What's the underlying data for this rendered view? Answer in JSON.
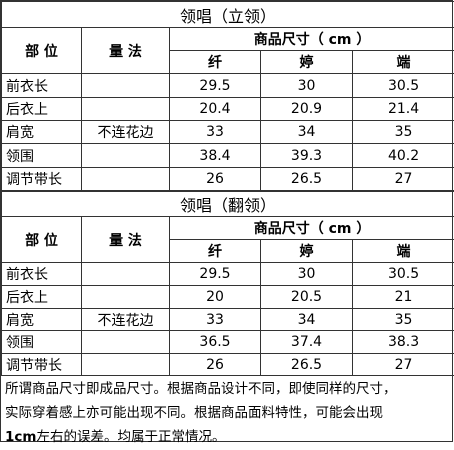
{
  "sections": [
    {
      "title": "领唱（立领）",
      "header": {
        "part": "部 位",
        "method": "量 法",
        "size": "商品尺寸（ cm ）",
        "sizes": [
          "纤",
          "婷",
          "端"
        ]
      },
      "rows": [
        {
          "part": "前衣长",
          "values": [
            29.5,
            30,
            30.5
          ]
        },
        {
          "part": "后衣上",
          "values": [
            20.4,
            20.9,
            21.4
          ]
        },
        {
          "part": "肩宽",
          "method": "不连花边",
          "values": [
            33,
            34,
            35
          ]
        },
        {
          "part": "领围",
          "values": [
            38.4,
            39.3,
            40.2
          ]
        },
        {
          "part": "调节带长",
          "values": [
            26,
            26.5,
            27
          ]
        }
      ]
    },
    {
      "title": "领唱（翻领）",
      "header": {
        "part": "部 位",
        "method": "量 法",
        "size": "商品尺寸（ cm ）",
        "sizes": [
          "纤",
          "婷",
          "端"
        ]
      },
      "rows": [
        {
          "part": "前衣长",
          "values": [
            29.5,
            30,
            30.5
          ]
        },
        {
          "part": "后衣上",
          "values": [
            20,
            20.5,
            21
          ]
        },
        {
          "part": "肩宽",
          "method": "不连花边",
          "values": [
            33,
            34,
            35
          ]
        },
        {
          "part": "领围",
          "values": [
            36.5,
            37.4,
            38.3
          ]
        },
        {
          "part": "调节带长",
          "values": [
            26,
            26.5,
            27
          ]
        }
      ]
    }
  ],
  "note": {
    "lines": [
      "所谓商品尺寸即成品尺寸。根据商品设计不同，即使同样的尺寸，",
      "实际穿着感上亦可能出现不同。根据商品面料特性，可能会出现"
    ],
    "bold": "1cm",
    "tail": "左右的误差。均属于正常情况。"
  }
}
